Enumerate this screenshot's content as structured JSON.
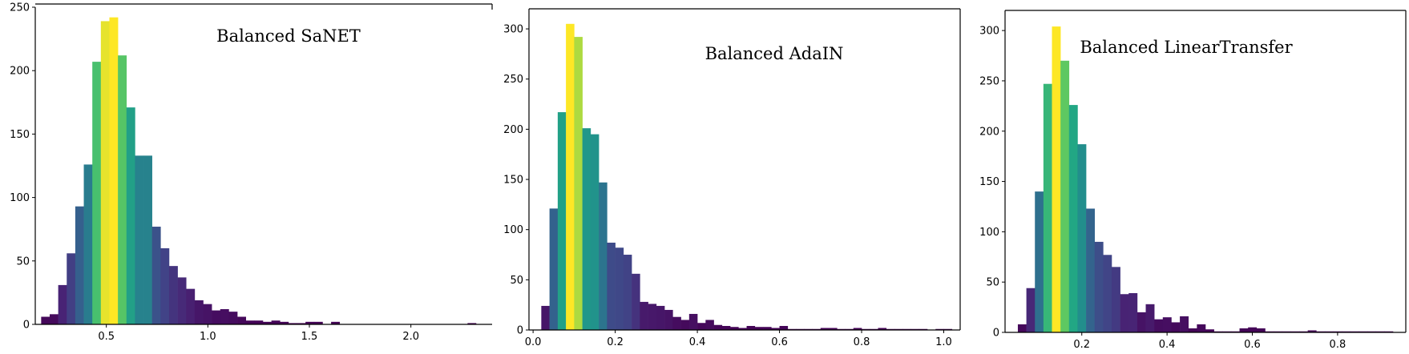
{
  "chart_data": [
    {
      "type": "bar",
      "title": "Balanced SaNET",
      "xlabel": "",
      "ylabel": "",
      "xlim": [
        0.15,
        2.4
      ],
      "ylim": [
        0,
        250
      ],
      "xticks": [
        0.5,
        1.0,
        1.5,
        2.0
      ],
      "xtick_labels": [
        "0.5",
        "1.0",
        "1.5",
        "2.0"
      ],
      "yticks": [
        0,
        50,
        100,
        150,
        200,
        250
      ],
      "ytick_labels": [
        "0",
        "50",
        "100",
        "150",
        "200",
        "250"
      ],
      "bin_width": 0.042,
      "x": [
        0.2,
        0.242,
        0.284,
        0.326,
        0.368,
        0.41,
        0.452,
        0.494,
        0.536,
        0.578,
        0.62,
        0.662,
        0.704,
        0.746,
        0.788,
        0.83,
        0.872,
        0.914,
        0.956,
        0.998,
        1.04,
        1.082,
        1.124,
        1.166,
        1.208,
        1.25,
        1.292,
        1.334,
        1.376,
        1.418,
        1.46,
        1.502,
        1.544,
        1.586,
        1.628,
        2.3
      ],
      "values": [
        6,
        8,
        31,
        56,
        93,
        126,
        207,
        239,
        242,
        212,
        171,
        133,
        133,
        77,
        60,
        46,
        37,
        28,
        19,
        16,
        11,
        12,
        10,
        6,
        3,
        3,
        2,
        3,
        2,
        1,
        1,
        2,
        2,
        0,
        2,
        1
      ],
      "grid": false,
      "legend": "none",
      "colormap": "viridis"
    },
    {
      "type": "bar",
      "title": "Balanced AdaIN",
      "xlabel": "",
      "ylabel": "",
      "xlim": [
        -0.01,
        1.04
      ],
      "ylim": [
        0,
        320
      ],
      "xticks": [
        0.0,
        0.2,
        0.4,
        0.6,
        0.8,
        1.0
      ],
      "xtick_labels": [
        "0.0",
        "0.2",
        "0.4",
        "0.6",
        "0.8",
        "1.0"
      ],
      "yticks": [
        0,
        50,
        100,
        150,
        200,
        250,
        300
      ],
      "ytick_labels": [
        "0",
        "50",
        "100",
        "150",
        "200",
        "250",
        "300"
      ],
      "bin_width": 0.02,
      "x": [
        0.03,
        0.05,
        0.07,
        0.09,
        0.11,
        0.13,
        0.15,
        0.17,
        0.19,
        0.21,
        0.23,
        0.25,
        0.27,
        0.29,
        0.31,
        0.33,
        0.35,
        0.37,
        0.39,
        0.41,
        0.43,
        0.45,
        0.47,
        0.49,
        0.51,
        0.53,
        0.55,
        0.57,
        0.59,
        0.61,
        0.63,
        0.65,
        0.67,
        0.69,
        0.71,
        0.73,
        0.75,
        0.77,
        0.79,
        0.81,
        0.83,
        0.85,
        0.87,
        0.89,
        0.91,
        0.93,
        0.95,
        0.97,
        0.99,
        1.01
      ],
      "values": [
        24,
        121,
        217,
        305,
        292,
        201,
        195,
        147,
        87,
        82,
        75,
        56,
        28,
        26,
        24,
        20,
        13,
        10,
        16,
        7,
        10,
        5,
        4,
        3,
        2,
        4,
        3,
        3,
        2,
        4,
        1,
        1,
        1,
        1,
        2,
        2,
        1,
        1,
        2,
        1,
        1,
        2,
        1,
        1,
        1,
        1,
        1,
        0,
        1,
        1
      ],
      "grid": false,
      "legend": "none",
      "colormap": "viridis"
    },
    {
      "type": "bar",
      "title": "Balanced LinearTransfer",
      "xlabel": "",
      "ylabel": "",
      "xlim": [
        0.02,
        0.96
      ],
      "ylim": [
        0,
        320
      ],
      "xticks": [
        0.2,
        0.4,
        0.6,
        0.8
      ],
      "xtick_labels": [
        "0.2",
        "0.4",
        "0.6",
        "0.8"
      ],
      "yticks": [
        0,
        50,
        100,
        150,
        200,
        250,
        300
      ],
      "ytick_labels": [
        "0",
        "50",
        "100",
        "150",
        "200",
        "250",
        "300"
      ],
      "bin_width": 0.02,
      "x": [
        0.06,
        0.08,
        0.1,
        0.12,
        0.14,
        0.16,
        0.18,
        0.2,
        0.22,
        0.24,
        0.26,
        0.28,
        0.3,
        0.32,
        0.34,
        0.36,
        0.38,
        0.4,
        0.42,
        0.44,
        0.46,
        0.48,
        0.5,
        0.52,
        0.54,
        0.56,
        0.58,
        0.6,
        0.62,
        0.64,
        0.66,
        0.68,
        0.7,
        0.72,
        0.74,
        0.76,
        0.78,
        0.8,
        0.82,
        0.84,
        0.86,
        0.88,
        0.9,
        0.92
      ],
      "values": [
        8,
        44,
        140,
        247,
        304,
        270,
        226,
        187,
        123,
        90,
        77,
        65,
        38,
        39,
        20,
        28,
        13,
        15,
        10,
        16,
        4,
        8,
        3,
        1,
        1,
        1,
        4,
        5,
        4,
        1,
        1,
        1,
        1,
        1,
        2,
        1,
        1,
        1,
        1,
        1,
        1,
        1,
        1,
        1
      ],
      "grid": false,
      "legend": "none",
      "colormap": "viridis"
    }
  ]
}
